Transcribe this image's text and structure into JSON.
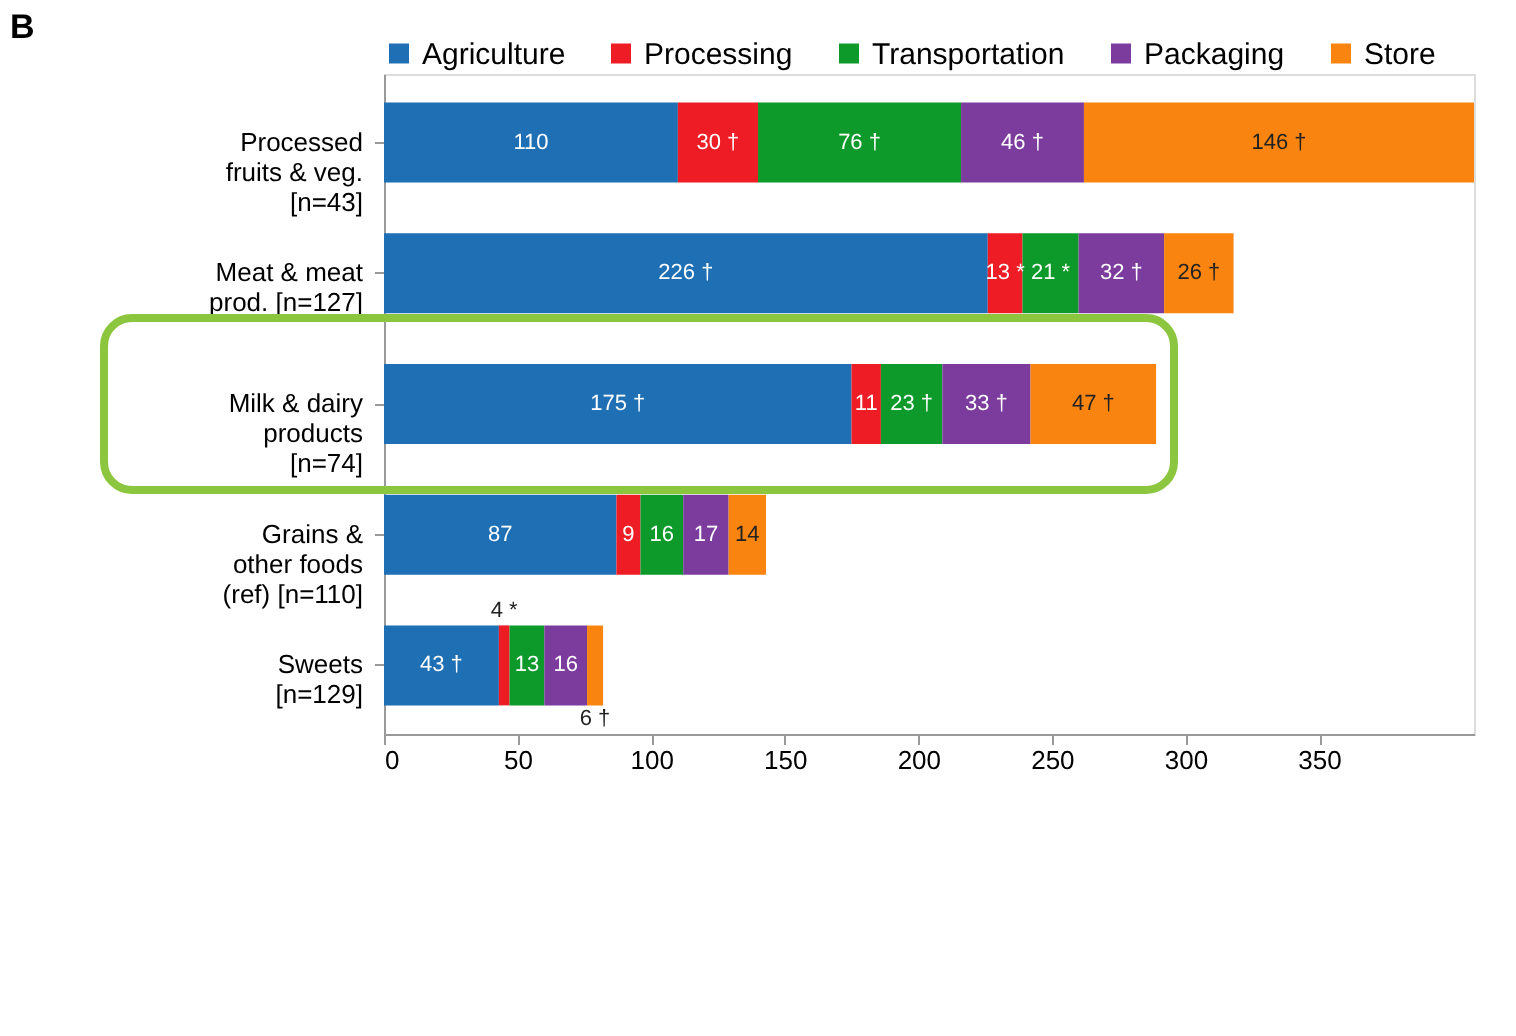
{
  "chart_data": {
    "type": "bar",
    "orientation": "horizontal",
    "stacked": true,
    "title": "B",
    "categories": [
      "Processed\nfruits & veg.\n[n=43]",
      "Meat & meat\nprod. [n=127]",
      "Milk & dairy\nproducts\n[n=74]",
      "Grains &\nother foods\n(ref) [n=110]",
      "Sweets\n[n=129]"
    ],
    "series": [
      {
        "name": "Agriculture",
        "color": "#1f6fb4",
        "values": [
          110,
          226,
          175,
          87,
          43
        ],
        "value_labels": [
          "110",
          "226 †",
          "175 †",
          "87",
          "43 †"
        ]
      },
      {
        "name": "Processing",
        "color": "#ee1c25",
        "values": [
          30,
          13,
          11,
          9,
          4
        ],
        "value_labels": [
          "30 †",
          "13 *",
          "11",
          "9",
          "4 *"
        ]
      },
      {
        "name": "Transportation",
        "color": "#0d9a2a",
        "values": [
          76,
          21,
          23,
          16,
          13
        ],
        "value_labels": [
          "76 †",
          "21 *",
          "23 †",
          "16",
          "13"
        ]
      },
      {
        "name": "Packaging",
        "color": "#7c3c9e",
        "values": [
          46,
          32,
          33,
          17,
          16
        ],
        "value_labels": [
          "46 †",
          "32 †",
          "33 †",
          "17",
          "16"
        ]
      },
      {
        "name": "Store",
        "color": "#f98510",
        "values": [
          146,
          26,
          47,
          14,
          6
        ],
        "value_labels": [
          "146 †",
          "26 †",
          "47 †",
          "14",
          "6 †"
        ]
      }
    ],
    "xlim": [
      0,
      408
    ],
    "xticks": [
      0,
      50,
      100,
      150,
      200,
      250,
      300,
      350
    ],
    "grid": false,
    "legend": "top"
  }
}
